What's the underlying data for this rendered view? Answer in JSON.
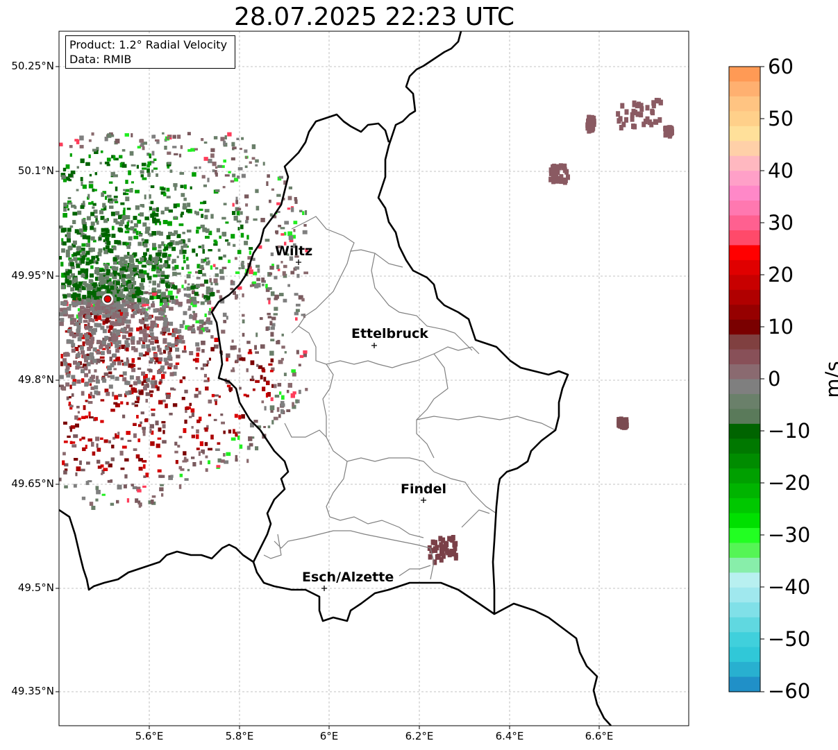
{
  "title": "28.07.2025 22:23 UTC",
  "info": {
    "product": "Product: 1.2° Radial Velocity",
    "source": "Data: RMIB"
  },
  "lat_ticks": [
    "50.25°N",
    "50.1°N",
    "49.95°N",
    "49.8°N",
    "49.65°N",
    "49.5°N",
    "49.35°N"
  ],
  "lon_ticks": [
    "5.6°E",
    "5.8°E",
    "6°E",
    "6.2°E",
    "6.4°E",
    "6.6°E"
  ],
  "cities": [
    "Wiltz",
    "Ettelbruck",
    "Findel",
    "Esch/Alzette"
  ],
  "colorbar": {
    "unit": "m/s",
    "ticks": [
      "60",
      "50",
      "40",
      "30",
      "20",
      "10",
      "0",
      "−10",
      "−20",
      "−30",
      "−40",
      "−50",
      "−60"
    ],
    "range": [
      -60,
      60
    ]
  },
  "colors": {
    "radar_site": "#e00000",
    "country_border": "#000000",
    "canton_border": "#808080",
    "receding_shades": [
      "#7a0000",
      "#aa0000",
      "#d80000",
      "#ff3d5a"
    ],
    "approaching_shades": [
      "#006400",
      "#00a000",
      "#22ee22"
    ],
    "near_zero": [
      "#7a5a5e",
      "#8a6a6e",
      "#7f7f7f",
      "#6a7f6a"
    ]
  }
}
